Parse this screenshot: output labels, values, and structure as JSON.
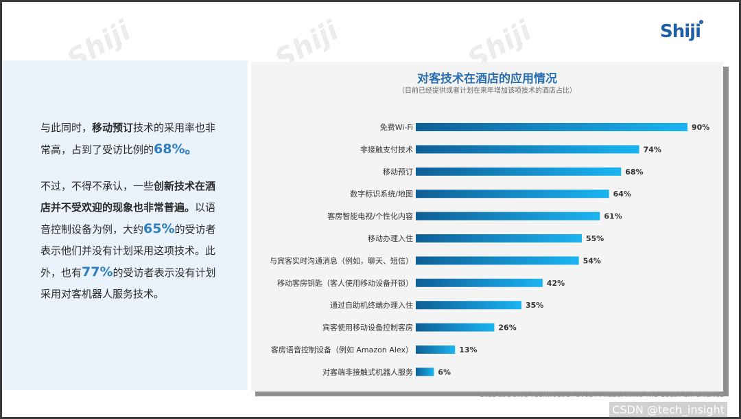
{
  "watermark": "Shiji",
  "logo": "Shiji",
  "left_text": {
    "p1_a": "与此同时，",
    "p1_b": "移动预订",
    "p1_c": "技术的采用率也非常高，占到了受访比例的",
    "p1_d": "68%。",
    "p2_a": "不过，不得不承认，一些",
    "p2_b": "创新技术在酒店并不受欢迎的现象也非常普遍。",
    "p2_c": "以语音控制设备为例，大约",
    "p2_d": "65%",
    "p2_e": "的受访者表示他们并没有计划采用这项技术。此外，也有",
    "p2_f": "77%",
    "p2_g": "的受访者表示没有计划采用对客机器人服务技术。"
  },
  "footer": "2022 LODGING TECHNOLOGY STUDY : REDEFINING THE GUEST EXPERIENCE",
  "csdn": "CSDN @tech_insight",
  "colors": {
    "bar_start": "#0f5f96",
    "bar_end": "#1ab4f2",
    "title": "#2a6eb0",
    "highlight": "#2d7fc0"
  },
  "chart_data": {
    "type": "bar",
    "orientation": "horizontal",
    "title": "对客技术在酒店的应用情况",
    "subtitle": "（目前已经提供或者计划在来年增加该项技术的酒店占比）",
    "categories": [
      "免费Wi-Fi",
      "非接触支付技术",
      "移动预订",
      "数字标识系统/地图",
      "客房智能电视/个性化内容",
      "移动办理入住",
      "与宾客实时沟通消息（例如，聊天、短信）",
      "移动客房钥匙（客人使用移动设备开锁）",
      "通过自助机终端办理入住",
      "宾客使用移动设备控制客房",
      "客房语音控制设备（例如 Amazon Alex）",
      "对客端非接触式机器人服务"
    ],
    "values": [
      90,
      74,
      68,
      64,
      61,
      55,
      54,
      42,
      35,
      26,
      13,
      6
    ],
    "value_labels": [
      "90%",
      "74%",
      "68%",
      "64%",
      "61%",
      "55%",
      "54%",
      "42%",
      "35%",
      "26%",
      "13%",
      "6%"
    ],
    "xlim": [
      0,
      90
    ],
    "grid": false,
    "legend": "none"
  }
}
